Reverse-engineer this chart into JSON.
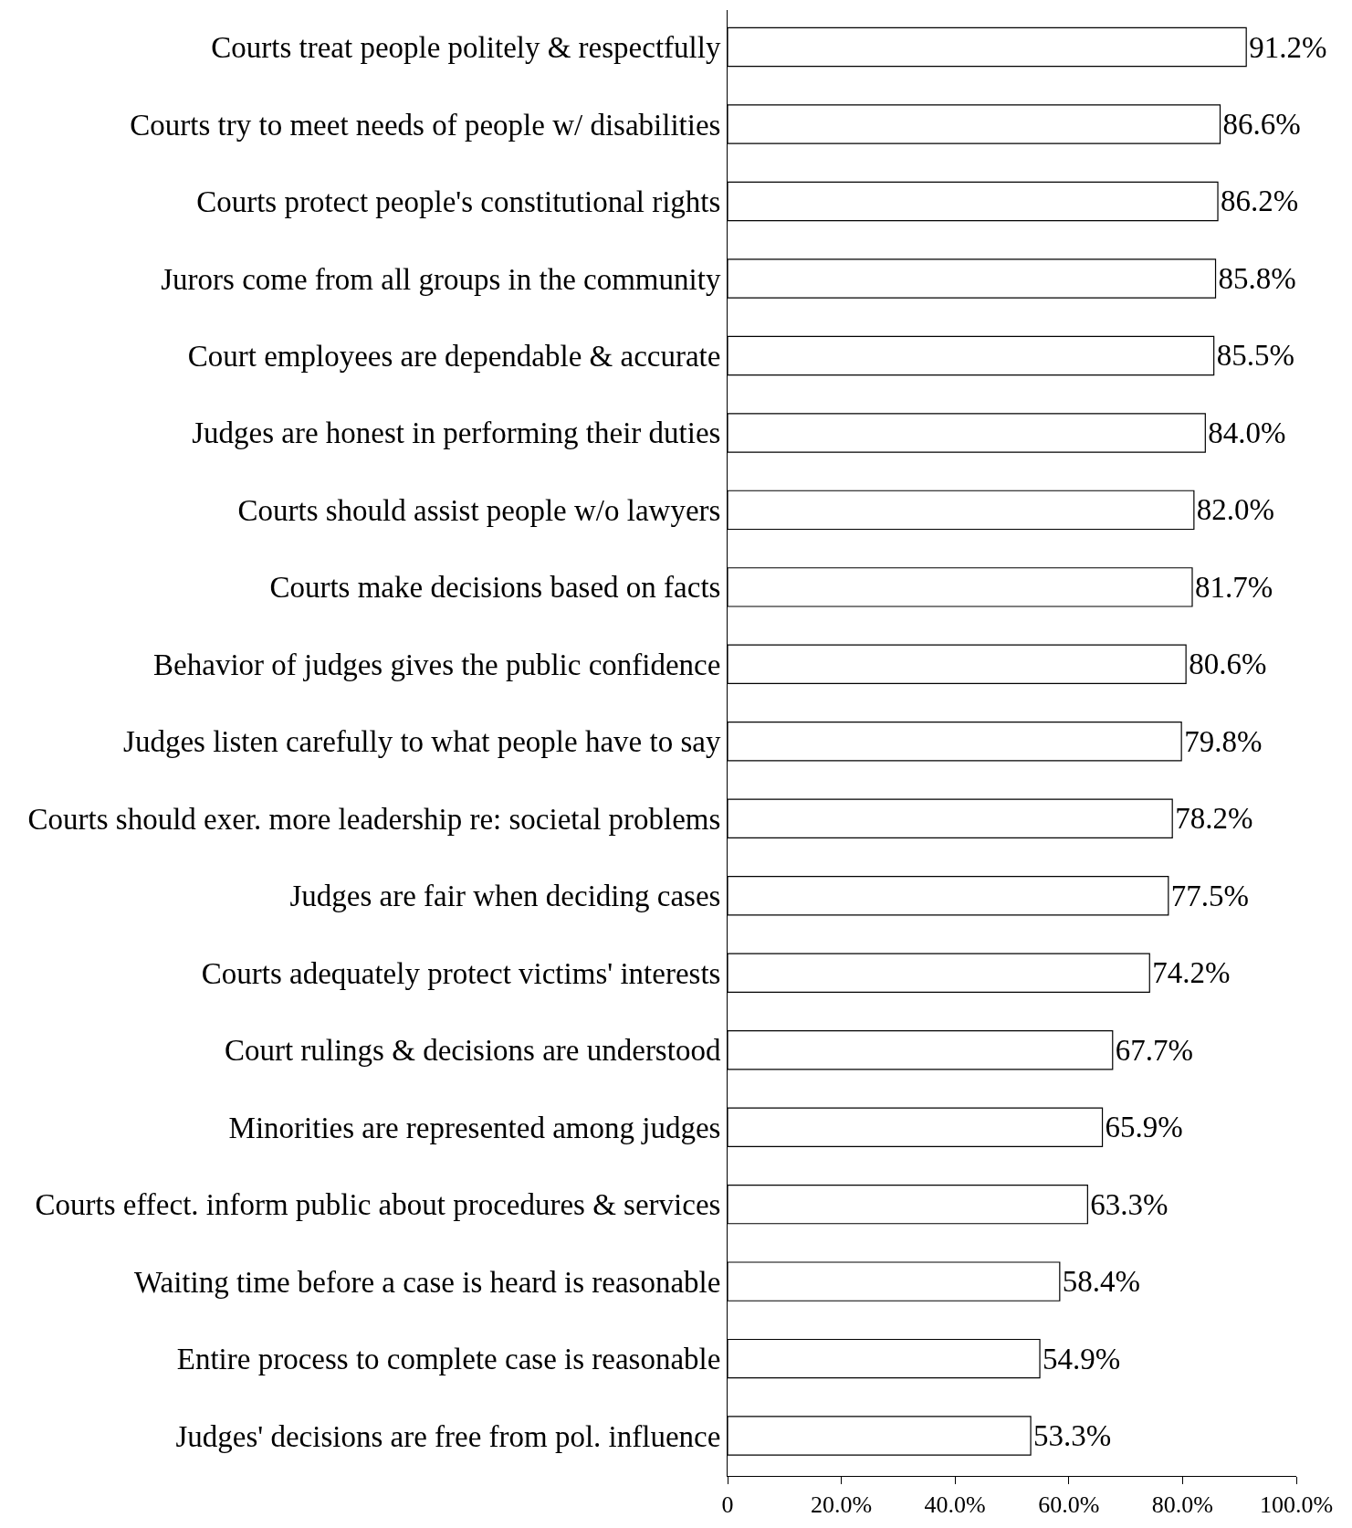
{
  "chart_data": {
    "type": "bar",
    "orientation": "horizontal",
    "categories": [
      "Courts treat people politely & respectfully",
      "Courts try to meet needs of people w/ disabilities",
      "Courts protect people's constitutional rights",
      "Jurors come from all groups in the community",
      "Court employees are dependable & accurate",
      "Judges are honest in performing their duties",
      "Courts should assist people w/o lawyers",
      "Courts make decisions based on facts",
      "Behavior of judges gives the public confidence",
      "Judges listen carefully to what people have to say",
      "Courts should exer. more leadership re: societal problems",
      "Judges are fair when deciding cases",
      "Courts adequately protect victims' interests",
      "Court rulings & decisions are understood",
      "Minorities are represented among judges",
      "Courts effect. inform public about procedures & services",
      "Waiting time before a case is heard is reasonable",
      "Entire process to complete case is reasonable",
      "Judges' decisions are free from pol. influence"
    ],
    "values": [
      91.2,
      86.6,
      86.2,
      85.8,
      85.5,
      84.0,
      82.0,
      81.7,
      80.6,
      79.8,
      78.2,
      77.5,
      74.2,
      67.7,
      65.9,
      63.3,
      58.4,
      54.9,
      53.3
    ],
    "value_labels": [
      "91.2%",
      "86.6%",
      "86.2%",
      "85.8%",
      "85.5%",
      "84.0%",
      "82.0%",
      "81.7%",
      "80.6%",
      "79.8%",
      "78.2%",
      "77.5%",
      "74.2%",
      "67.7%",
      "65.9%",
      "63.3%",
      "58.4%",
      "54.9%",
      "53.3%"
    ],
    "color": "#ffffff",
    "xlim": [
      0,
      100
    ],
    "xticks": [
      0,
      {
        "value": 20,
        "label": "20.0%"
      },
      {
        "value": 40,
        "label": "40.0%"
      },
      {
        "value": 60,
        "label": "60.0%"
      },
      {
        "value": 80,
        "label": "80.0%"
      },
      {
        "value": 100,
        "label": "100.0%"
      }
    ],
    "grid": false,
    "legend": false
  }
}
